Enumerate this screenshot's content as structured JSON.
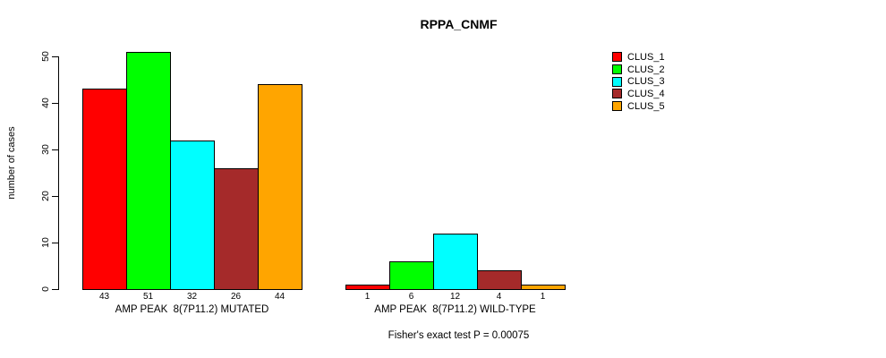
{
  "chart_data": {
    "type": "bar",
    "title": "RPPA_CNMF",
    "ylabel": "number of cases",
    "ylim": [
      0,
      50
    ],
    "yticks": [
      0,
      10,
      20,
      30,
      40,
      50
    ],
    "grid": false,
    "legend_position": "right",
    "clusters": [
      {
        "label": "CLUS_1",
        "color": "#FF0000"
      },
      {
        "label": "CLUS_2",
        "color": "#00FF00"
      },
      {
        "label": "CLUS_3",
        "color": "#00FFFF"
      },
      {
        "label": "CLUS_4",
        "color": "#A52A2A"
      },
      {
        "label": "CLUS_5",
        "color": "#FFA500"
      }
    ],
    "groups": [
      {
        "label": "AMP PEAK  8(7P11.2) MUTATED",
        "values": [
          43,
          51,
          32,
          26,
          44
        ]
      },
      {
        "label": "AMP PEAK  8(7P11.2) WILD-TYPE",
        "values": [
          1,
          6,
          12,
          4,
          1
        ]
      }
    ],
    "annotation": "Fisher's exact test P = 0.00075"
  }
}
